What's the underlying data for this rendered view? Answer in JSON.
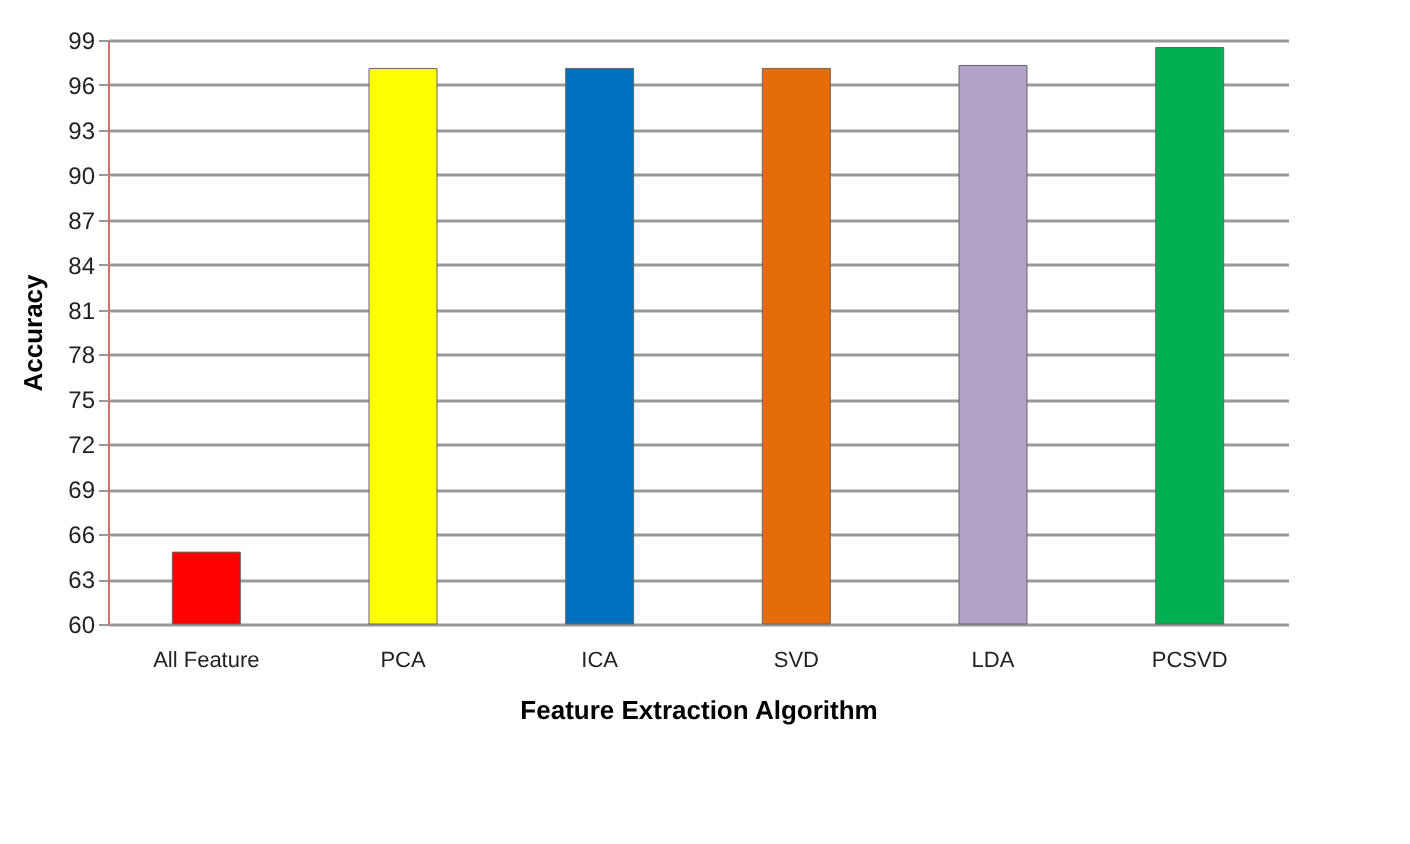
{
  "chart_data": {
    "type": "bar",
    "xlabel": "Feature Extraction Algorithm",
    "ylabel": "Accuracy",
    "categories": [
      "All Feature",
      "PCA",
      "ICA",
      "SVD",
      "LDA",
      "PCSVD"
    ],
    "values": [
      64.8,
      97.1,
      97.1,
      97.1,
      97.3,
      98.5
    ],
    "colors": [
      "#ff0000",
      "#ffff00",
      "#0070c0",
      "#e46c0a",
      "#b3a2c7",
      "#00b050"
    ],
    "ylim": [
      60,
      99
    ],
    "yticks": [
      60,
      63,
      66,
      69,
      72,
      75,
      78,
      81,
      84,
      87,
      90,
      93,
      96,
      99
    ],
    "grid": "y"
  }
}
